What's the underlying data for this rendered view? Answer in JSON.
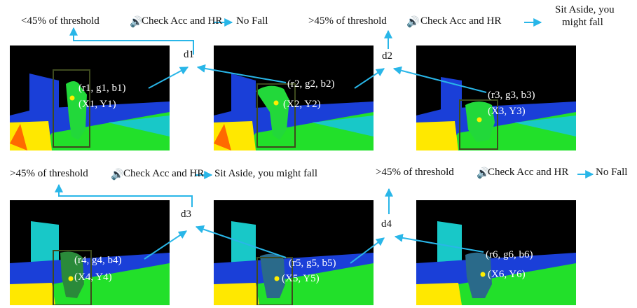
{
  "colors": {
    "arrow": "#29b6e8",
    "box": "#3e4a1e",
    "centroid": "#ffee00",
    "background": "#000000",
    "scene_green": "#22e02a",
    "scene_yellow": "#ffe800",
    "scene_cyan": "#18c8c8",
    "scene_blue": "#1a3fd8"
  },
  "rows": [
    {
      "header": {
        "left": "<45% of threshold",
        "check": "Check Acc and HR",
        "outcome": "No Fall",
        "right": ">45% of threshold",
        "check2": "Check Acc and HR",
        "outcome2_line1": "Sit Aside, you",
        "outcome2_line2": "might fall"
      },
      "distances": [
        "d1",
        "d2"
      ],
      "frames": [
        {
          "rgb": "(r1, g1, b1)",
          "xy": "(X1, Y1)"
        },
        {
          "rgb": "(r2, g2, b2)",
          "xy": "(X2, Y2)"
        },
        {
          "rgb": "(r3, g3, b3)",
          "xy": "(X3, Y3)"
        }
      ]
    },
    {
      "header": {
        "left": ">45% of threshold",
        "check": "Check Acc and HR",
        "outcome": "Sit Aside, you might fall",
        "right": ">45% of threshold",
        "check2": "Check Acc and HR",
        "outcome2": "No Fall"
      },
      "distances": [
        "d3",
        "d4"
      ],
      "frames": [
        {
          "rgb": "(r4, g4, b4)",
          "xy": "(X4, Y4)"
        },
        {
          "rgb": "(r5, g5, b5)",
          "xy": "(X5, Y5)"
        },
        {
          "rgb": "(r6, g6, b6)",
          "xy": "(X6, Y6)"
        }
      ]
    }
  ]
}
